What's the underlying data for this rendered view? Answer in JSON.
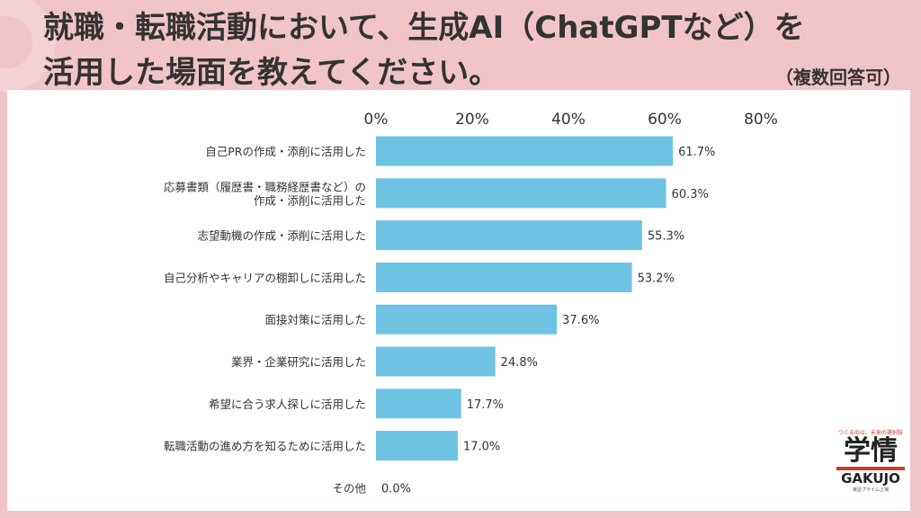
{
  "title_line1": "就職・転職活動において、生成AI（ChatGPTなど）を",
  "title_line2": "活用した場面を教えてください。",
  "note": "（複数回答可）",
  "logo": {
    "tagline": "つくるのは、未来の選択肢",
    "kanji": "学情",
    "latin": "GAKUJO",
    "sub": "東証プライム上場"
  },
  "colors": {
    "bar": "#6ec3e2",
    "background": "#f0c4c8",
    "panel": "#ffffff",
    "text": "#333333"
  },
  "chart_data": {
    "type": "bar",
    "orientation": "horizontal",
    "axis_position": "top",
    "xlim": [
      0,
      80
    ],
    "ticks": [
      "0%",
      "20%",
      "40%",
      "60%",
      "80%"
    ],
    "tick_values": [
      0,
      20,
      40,
      60,
      80
    ],
    "categories": [
      [
        "自己PRの作成・添削に活用した"
      ],
      [
        "応募書類（履歴書・職務経歴書など）の",
        "作成・添削に活用した"
      ],
      [
        "志望動機の作成・添削に活用した"
      ],
      [
        "自己分析やキャリアの棚卸しに活用した"
      ],
      [
        "面接対策に活用した"
      ],
      [
        "業界・企業研究に活用した"
      ],
      [
        "希望に合う求人探しに活用した"
      ],
      [
        "転職活動の進め方を知るために活用した"
      ],
      [
        "その他"
      ]
    ],
    "values": [
      61.7,
      60.3,
      55.3,
      53.2,
      37.6,
      24.8,
      17.7,
      17.0,
      0.0
    ],
    "value_labels": [
      "61.7%",
      "60.3%",
      "55.3%",
      "53.2%",
      "37.6%",
      "24.8%",
      "17.7%",
      "17.0%",
      "0.0%"
    ]
  }
}
